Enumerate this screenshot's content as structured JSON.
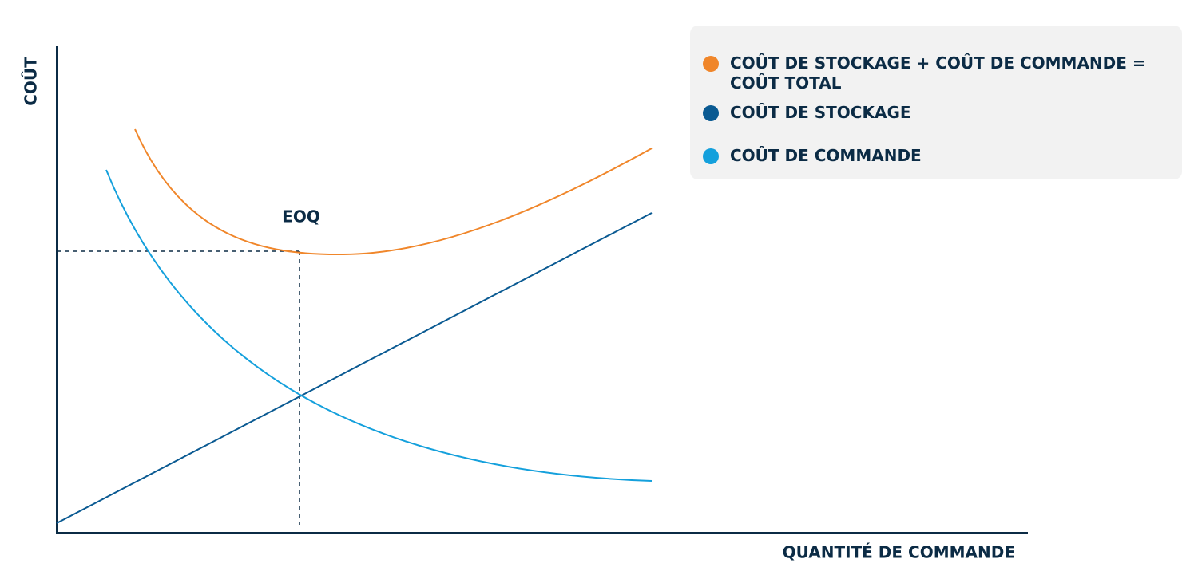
{
  "axes": {
    "y_label": "COÛT",
    "x_label": "QUANTITÉ DE COMMANDE"
  },
  "annotation": "EOQ",
  "legend": [
    {
      "label": "COÛT DE STOCKAGE + COÛT DE COMMANDE = COÛT TOTAL",
      "color": "#f0862a"
    },
    {
      "label": "COÛT DE STOCKAGE",
      "color": "#0a5a92"
    },
    {
      "label": "COÛT DE COMMANDE",
      "color": "#14a0dc"
    }
  ]
}
